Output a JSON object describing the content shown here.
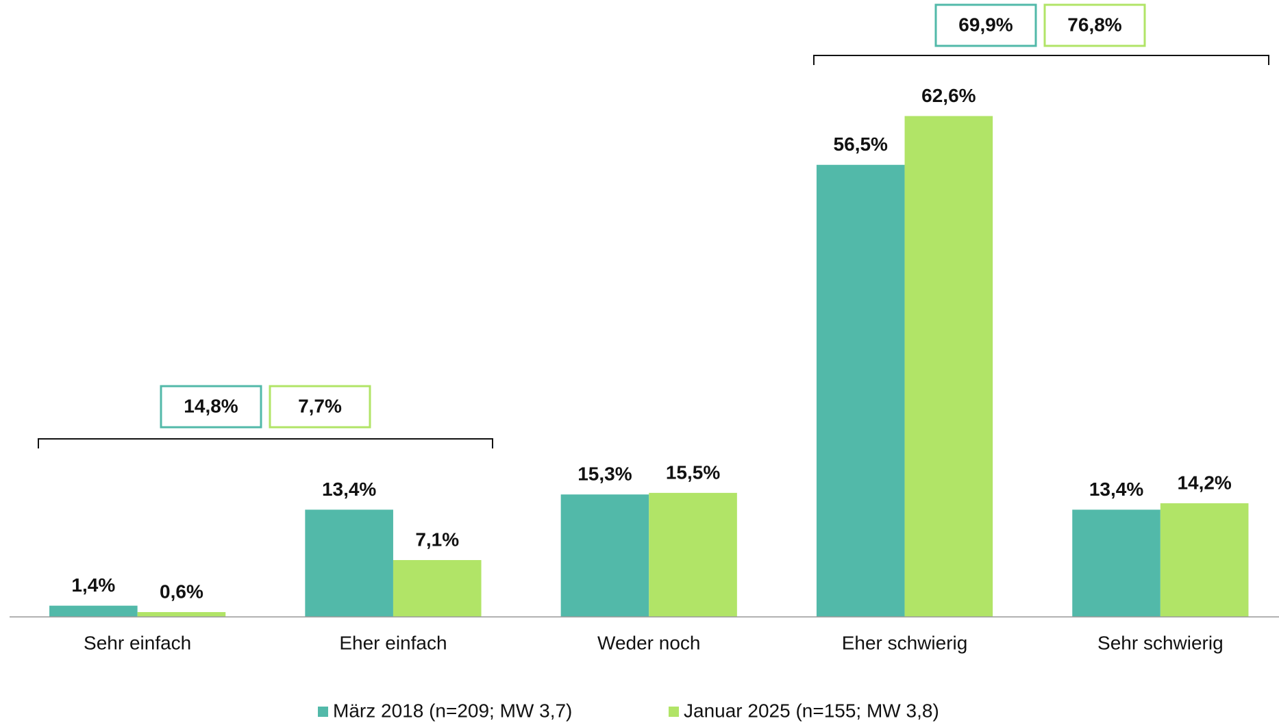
{
  "chart_data": {
    "type": "bar",
    "categories": [
      "Sehr einfach",
      "Eher einfach",
      "Weder noch",
      "Eher schwierig",
      "Sehr schwierig"
    ],
    "series": [
      {
        "name": "März 2018 (n=209; MW 3,7)",
        "color": "#52b9a9",
        "values": [
          1.4,
          13.4,
          15.3,
          56.5,
          13.4
        ],
        "value_labels": [
          "1,4%",
          "13,4%",
          "15,3%",
          "56,5%",
          "13,4%"
        ]
      },
      {
        "name": "Januar 2025 (n=155; MW 3,8)",
        "color": "#b1e467",
        "values": [
          0.6,
          7.1,
          15.5,
          62.6,
          14.2
        ],
        "value_labels": [
          "0,6%",
          "7,1%",
          "15,5%",
          "62,6%",
          "14,2%"
        ]
      }
    ],
    "ylim": [
      0,
      70
    ],
    "annotations": [
      {
        "labels": [
          "14,8%",
          "7,7%"
        ]
      },
      {
        "labels": [
          "69,9%",
          "76,8%"
        ]
      }
    ]
  }
}
